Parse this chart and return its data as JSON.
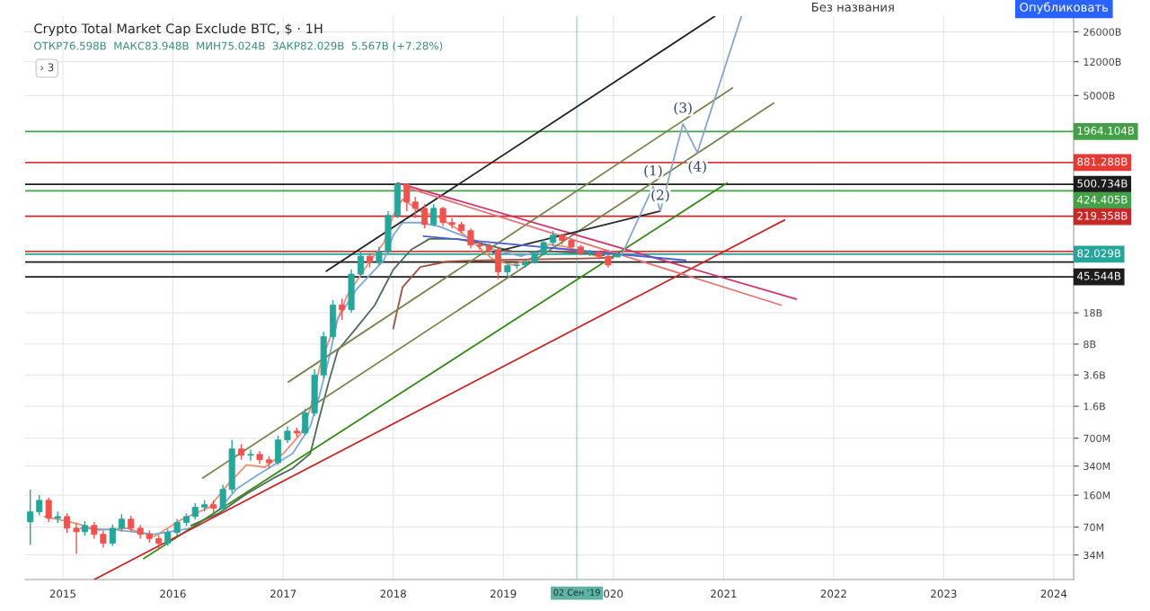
{
  "chart_data": {
    "type": "candlestick",
    "title": "Crypto Total Market Cap Exclude BTC, $ · 1H",
    "subtitle": "ОТКР76.598B  МАКС83.948B  МИН75.024B  ЗАКР82.029B  5.567B (+7.28%)",
    "x": [
      "2014-09-15",
      "2014-10-15",
      "2014-11-15",
      "2014-12-15",
      "2015-01-15",
      "2015-02-15",
      "2015-03-15",
      "2015-04-15",
      "2015-05-15",
      "2015-06-15",
      "2015-07-15",
      "2015-08-15",
      "2015-09-15",
      "2015-10-15",
      "2015-11-15",
      "2015-12-15",
      "2016-01-15",
      "2016-02-15",
      "2016-03-15",
      "2016-04-15",
      "2016-05-15",
      "2016-06-15",
      "2016-07-15",
      "2016-08-15",
      "2016-09-15",
      "2016-10-15",
      "2016-11-15",
      "2016-12-15",
      "2017-01-15",
      "2017-02-15",
      "2017-03-15",
      "2017-04-15",
      "2017-05-15",
      "2017-06-15",
      "2017-07-15",
      "2017-08-15",
      "2017-09-15",
      "2017-10-15",
      "2017-11-15",
      "2017-12-15",
      "2018-01-15",
      "2018-02-15",
      "2018-03-15",
      "2018-04-15",
      "2018-05-15",
      "2018-06-15",
      "2018-07-15",
      "2018-08-15",
      "2018-09-15",
      "2018-10-15",
      "2018-11-15",
      "2018-12-15",
      "2019-01-15",
      "2019-02-15",
      "2019-03-15",
      "2019-04-15",
      "2019-05-15",
      "2019-06-15",
      "2019-07-15",
      "2019-08-15",
      "2019-09-15",
      "2019-10-15",
      "2019-11-15",
      "2019-12-15",
      "2020-01-15"
    ],
    "ohlc": [
      [
        80000000.0,
        186000000.0,
        44000000.0,
        104000000.0
      ],
      [
        104000000.0,
        160000000.0,
        95000000.0,
        140000000.0
      ],
      [
        140000000.0,
        150000000.0,
        80000000.0,
        88000000.0
      ],
      [
        88000000.0,
        105000000.0,
        78000000.0,
        92000000.0
      ],
      [
        92000000.0,
        100000000.0,
        60000000.0,
        68000000.0
      ],
      [
        68000000.0,
        78000000.0,
        35000000.0,
        62000000.0
      ],
      [
        62000000.0,
        82000000.0,
        56000000.0,
        73000000.0
      ],
      [
        73000000.0,
        80000000.0,
        52000000.0,
        58000000.0
      ],
      [
        58000000.0,
        64000000.0,
        41000000.0,
        46000000.0
      ],
      [
        46000000.0,
        75000000.0,
        43000000.0,
        68000000.0
      ],
      [
        68000000.0,
        98000000.0,
        62000000.0,
        86000000.0
      ],
      [
        86000000.0,
        94000000.0,
        62000000.0,
        68000000.0
      ],
      [
        68000000.0,
        74000000.0,
        52000000.0,
        58000000.0
      ],
      [
        58000000.0,
        64000000.0,
        47000000.0,
        52000000.0
      ],
      [
        52000000.0,
        57000000.0,
        40000000.0,
        46000000.0
      ],
      [
        46000000.0,
        66000000.0,
        43000000.0,
        61000000.0
      ],
      [
        61000000.0,
        86000000.0,
        56000000.0,
        79000000.0
      ],
      [
        79000000.0,
        100000000.0,
        72000000.0,
        92000000.0
      ],
      [
        92000000.0,
        130000000.0,
        85000000.0,
        117000000.0
      ],
      [
        117000000.0,
        140000000.0,
        105000000.0,
        125000000.0
      ],
      [
        125000000.0,
        140000000.0,
        100000000.0,
        114000000.0
      ],
      [
        114000000.0,
        210000000.0,
        105000000.0,
        186000000.0
      ],
      [
        186000000.0,
        670000000.0,
        170000000.0,
        530000000.0
      ],
      [
        530000000.0,
        600000000.0,
        400000000.0,
        450000000.0
      ],
      [
        450000000.0,
        520000000.0,
        390000000.0,
        460000000.0
      ],
      [
        460000000.0,
        500000000.0,
        360000000.0,
        400000000.0
      ],
      [
        400000000.0,
        440000000.0,
        320000000.0,
        370000000.0
      ],
      [
        370000000.0,
        750000000.0,
        350000000.0,
        670000000.0
      ],
      [
        670000000.0,
        950000000.0,
        620000000.0,
        840000000.0
      ],
      [
        840000000.0,
        920000000.0,
        720000000.0,
        800000000.0
      ],
      [
        800000000.0,
        1500000000.0,
        760000000.0,
        1340000000.0
      ],
      [
        1340000000.0,
        4200000000.0,
        1250000000.0,
        3600000000.0
      ],
      [
        3600000000.0,
        11000000000.0,
        3300000000.0,
        9700000000.0
      ],
      [
        9700000000.0,
        25000000000.0,
        9000000000.0,
        22000000000.0
      ],
      [
        22000000000.0,
        26000000000.0,
        15000000000.0,
        19500000000.0
      ],
      [
        19500000000.0,
        55000000000.0,
        18000000000.0,
        49000000000.0
      ],
      [
        49000000000.0,
        90000000000.0,
        45000000000.0,
        78000000000.0
      ],
      [
        78000000000.0,
        85000000000.0,
        58000000000.0,
        67000000000.0
      ],
      [
        67000000000.0,
        100000000000.0,
        62000000000.0,
        88000000000.0
      ],
      [
        88000000000.0,
        250000000000.0,
        82000000000.0,
        224000000000.0
      ],
      [
        224000000000.0,
        520000000000.0,
        210000000000.0,
        505000000000.0
      ],
      [
        505000000000.0,
        515000000000.0,
        250000000000.0,
        317000000000.0
      ],
      [
        317000000000.0,
        360000000000.0,
        210000000000.0,
        269000000000.0
      ],
      [
        269000000000.0,
        300000000000.0,
        160000000000.0,
        177000000000.0
      ],
      [
        177000000000.0,
        300000000000.0,
        170000000000.0,
        269000000000.0
      ],
      [
        269000000000.0,
        280000000000.0,
        170000000000.0,
        186000000000.0
      ],
      [
        186000000000.0,
        210000000000.0,
        160000000000.0,
        177000000000.0
      ],
      [
        177000000000.0,
        190000000000.0,
        140000000000.0,
        151000000000.0
      ],
      [
        151000000000.0,
        160000000000.0,
        95000000000.0,
        104000000000.0
      ],
      [
        104000000000.0,
        115000000000.0,
        92000000000.0,
        101000000000.0
      ],
      [
        101000000000.0,
        108000000000.0,
        85000000000.0,
        92000000000.0
      ],
      [
        92000000000.0,
        96000000000.0,
        43000000000.0,
        52000000000.0
      ],
      [
        52000000000.0,
        65000000000.0,
        46000000000.0,
        61000000000.0
      ],
      [
        61000000000.0,
        66000000000.0,
        56000000000.0,
        62000000000.0
      ],
      [
        62000000000.0,
        70000000000.0,
        58000000000.0,
        67000000000.0
      ],
      [
        67000000000.0,
        90000000000.0,
        64000000000.0,
        84000000000.0
      ],
      [
        84000000000.0,
        120000000000.0,
        80000000000.0,
        111000000000.0
      ],
      [
        111000000000.0,
        150000000000.0,
        100000000000.0,
        134000000000.0
      ],
      [
        134000000000.0,
        140000000000.0,
        105000000000.0,
        117000000000.0
      ],
      [
        117000000000.0,
        122000000000.0,
        92000000000.0,
        99000000000.0
      ],
      [
        99000000000.0,
        104000000000.0,
        80000000000.0,
        84000000000.0
      ],
      [
        84000000000.0,
        92000000000.0,
        78000000000.0,
        86000000000.0
      ],
      [
        86000000000.0,
        90000000000.0,
        72000000000.0,
        78000000000.0
      ],
      [
        78000000000.0,
        82000000000.0,
        58000000000.0,
        62000000000.0
      ],
      [
        76598000000.0,
        83948000000.0,
        75024000000.0,
        82029000000.0
      ]
    ],
    "colors": [
      "#26a69a",
      "#26a69a",
      "#ef5350",
      "#26a69a",
      "#ef5350",
      "#ef5350",
      "#26a69a",
      "#ef5350",
      "#ef5350",
      "#26a69a",
      "#26a69a",
      "#ef5350",
      "#ef5350",
      "#ef5350",
      "#ef5350",
      "#26a69a",
      "#26a69a",
      "#26a69a",
      "#26a69a",
      "#26a69a",
      "#ef5350",
      "#26a69a",
      "#26a69a",
      "#ef5350",
      "#26a69a",
      "#ef5350",
      "#ef5350",
      "#26a69a",
      "#26a69a",
      "#ef5350",
      "#26a69a",
      "#26a69a",
      "#26a69a",
      "#26a69a",
      "#ef5350",
      "#26a69a",
      "#26a69a",
      "#ef5350",
      "#26a69a",
      "#26a69a",
      "#26a69a",
      "#ef5350",
      "#ef5350",
      "#ef5350",
      "#26a69a",
      "#ef5350",
      "#ef5350",
      "#ef5350",
      "#ef5350",
      "#ef5350",
      "#ef5350",
      "#ef5350",
      "#26a69a",
      "#26a69a",
      "#26a69a",
      "#26a69a",
      "#26a69a",
      "#26a69a",
      "#ef5350",
      "#ef5350",
      "#ef5350",
      "#26a69a",
      "#ef5350",
      "#ef5350",
      "#26a69a"
    ],
    "series": [
      {
        "type": "line",
        "color": "#ef8f74",
        "x": [
          "2014-11",
          "2015-02",
          "2015-05",
          "2015-08",
          "2015-11",
          "2016-02",
          "2016-05",
          "2016-07",
          "2016-09",
          "2016-11",
          "2017-01",
          "2017-03",
          "2017-04",
          "2017-05",
          "2017-06",
          "2017-08",
          "2017-10",
          "2017-12",
          "2018-01",
          "2018-02",
          "2018-04",
          "2018-06",
          "2018-08",
          "2018-10",
          "2018-12",
          "2019-02",
          "2019-04",
          "2019-06",
          "2019-08",
          "2019-10",
          "2019-12"
        ],
        "values": [
          92000000.0,
          79000000.0,
          65000000.0,
          68000000.0,
          55000000.0,
          86000000.0,
          117000000.0,
          210000000.0,
          350000000.0,
          330000000.0,
          470000000.0,
          790000000.0,
          1500000000.0,
          4300000000.0,
          8600000000.0,
          28000000000.0,
          58000000000.0,
          111000000000.0,
          224000000000.0,
          340000000000.0,
          251000000000.0,
          214000000000.0,
          158000000000.0,
          106000000000.0,
          70000000000.0,
          62000000000.0,
          73000000000.0,
          106000000000.0,
          99000000000.0,
          84000000000.0,
          75000000000.0
        ]
      },
      {
        "type": "line",
        "color": "#7fa6d6",
        "x": [
          "2015-03",
          "2015-07",
          "2015-11",
          "2016-03",
          "2016-06",
          "2016-08",
          "2016-10",
          "2016-12",
          "2017-02",
          "2017-04",
          "2017-05",
          "2017-06",
          "2017-07",
          "2017-09",
          "2017-11",
          "2017-12",
          "2018-01",
          "2018-02",
          "2018-04",
          "2018-06",
          "2018-08",
          "2018-10",
          "2018-12",
          "2019-03",
          "2019-06",
          "2019-09",
          "2019-12"
        ],
        "values": [
          68000000.0,
          65000000.0,
          58000000.0,
          68000000.0,
          110000000.0,
          190000000.0,
          260000000.0,
          350000000.0,
          470000000.0,
          950000000.0,
          2100000000.0,
          5400000000.0,
          15400000000.0,
          33000000000.0,
          55000000000.0,
          70000000000.0,
          134000000000.0,
          186000000000.0,
          186000000000.0,
          169000000000.0,
          140000000000.0,
          117000000000.0,
          92000000000.0,
          78000000000.0,
          97000000000.0,
          92000000000.0,
          80000000000.0
        ]
      },
      {
        "type": "line",
        "color": "#4e6b58",
        "x": [
          "2016-03",
          "2016-06",
          "2016-09",
          "2016-12",
          "2017-02",
          "2017-04",
          "2017-05",
          "2017-06",
          "2017-07",
          "2017-09",
          "2017-11",
          "2018-01",
          "2018-03",
          "2018-05",
          "2018-08",
          "2018-11",
          "2019-02",
          "2019-06",
          "2019-10",
          "2019-12"
        ],
        "values": [
          73000000.0,
          100000000.0,
          165000000.0,
          250000000.0,
          320000000.0,
          470000000.0,
          1200000000.0,
          3000000000.0,
          6800000000.0,
          12200000000.0,
          22000000000.0,
          55000000000.0,
          92000000000.0,
          122000000000.0,
          122000000000.0,
          106000000000.0,
          88000000000.0,
          88000000000.0,
          84000000000.0,
          80000000000.0
        ]
      },
      {
        "type": "line",
        "color": "#a0523f",
        "x": [
          "2018-01",
          "2018-02",
          "2018-04",
          "2018-07",
          "2018-11",
          "2019-04",
          "2019-09",
          "2020-01"
        ],
        "values": [
          12000000000.0,
          35000000000.0,
          59000000000.0,
          68000000000.0,
          70000000000.0,
          72000000000.0,
          73000000000.0,
          75000000000.0
        ]
      },
      {
        "type": "line",
        "color": "#222222",
        "x": [
          "2017-05-24",
          "2020-12-03"
        ],
        "values": [
          53000000000.0,
          39000000000000.0
        ]
      },
      {
        "type": "line",
        "color": "#7a8450",
        "x": [
          "2016-04-09",
          "2021-06-16"
        ],
        "values": [
          250000000.0,
          4100000000000.0
        ]
      },
      {
        "type": "line",
        "color": "#7a8450",
        "x": [
          "2017-01-18",
          "2021-01-30"
        ],
        "values": [
          3000000000.0,
          6080000000000.0
        ]
      },
      {
        "type": "line",
        "color": "#3a8a1c",
        "x": [
          "2015-09-26",
          "2021-01-12"
        ],
        "values": [
          31000000.0,
          517000000000.0
        ]
      },
      {
        "type": "line",
        "color": "#c62828",
        "x": [
          "2015-04-15",
          "2021-07-22"
        ],
        "values": [
          18000000.0,
          199000000000.0
        ]
      },
      {
        "type": "line",
        "color": "#d0346a",
        "x": [
          "2018-01-15",
          "2021-08-30"
        ],
        "values": [
          520000000000.0,
          25700000000.0
        ]
      },
      {
        "type": "line",
        "color": "#e57373",
        "x": [
          "2018-02-06",
          "2021-07-10"
        ],
        "values": [
          471000000000.0,
          22000000000.0
        ]
      },
      {
        "type": "line",
        "color": "#2b2b2b",
        "x": [
          "2018-11-28",
          "2020-06-05"
        ],
        "values": [
          86000000000.0,
          251000000000.0
        ]
      },
      {
        "type": "line",
        "color": "#4a5fd0",
        "x": [
          "2018-04-11",
          "2020-08-28"
        ],
        "values": [
          131000000000.0,
          70000000000.0
        ]
      },
      {
        "type": "line",
        "color": "#8aa4c8",
        "x": [
          "2020-01-30",
          "2020-05-12",
          "2020-06-05",
          "2020-08-19",
          "2020-10-06",
          "2021-03-01"
        ],
        "values": [
          82000000000.0,
          471000000000.0,
          251000000000.0,
          2400000000000.0,
          1140000000000.0,
          39000000000000.0
        ]
      }
    ],
    "xlim": [
      "2014-08-29",
      "2024-03-07"
    ],
    "xticks": [
      "2015",
      "2016",
      "2017",
      "2018",
      "2019",
      {
        "value": "2020",
        "label": "020"
      },
      "2021",
      "2022",
      "2023",
      "2024"
    ],
    "ylim": [
      18000000.0,
      39000000000000.0
    ],
    "yticks": [
      {
        "value": 26000000000000.0,
        "label": "26000B"
      },
      {
        "value": 12000000000000.0,
        "label": "12000B"
      },
      {
        "value": 5000000000000.0,
        "label": "5000B"
      },
      {
        "value": 18000000000.0,
        "label": "18B"
      },
      {
        "value": 8000000000.0,
        "label": "8B"
      },
      {
        "value": 3600000000.0,
        "label": "3.6B"
      },
      {
        "value": 1600000000.0,
        "label": "1.6B"
      },
      {
        "value": 700000000.0,
        "label": "700M"
      },
      {
        "value": 340000000.0,
        "label": "340M"
      },
      {
        "value": 160000000.0,
        "label": "160M"
      },
      {
        "value": 70000000.0,
        "label": "70M"
      },
      {
        "value": 34000000.0,
        "label": "34M"
      }
    ],
    "log": "y",
    "grid": true,
    "ref_lines": [
      {
        "axis": "y",
        "value": 1964104000000.0,
        "label": "1964.104B",
        "color": "#43a047"
      },
      {
        "axis": "y",
        "value": 881288000000.0,
        "label": "881.288B",
        "color": "#e53935"
      },
      {
        "axis": "y",
        "value": 500734000000.0,
        "label": "500.734B",
        "color": "#1c1c1c"
      },
      {
        "axis": "y",
        "value": 424405000000.0,
        "label": "424.405B",
        "color": "#43a047"
      },
      {
        "axis": "y",
        "value": 219358000000.0,
        "label": "219.358B",
        "color": "#c62828"
      },
      {
        "axis": "y",
        "value": 88000000000.0,
        "color": "#e53935"
      },
      {
        "axis": "y",
        "value": 82029000000.0,
        "label": "82.029B",
        "color": "#26a69a"
      },
      {
        "axis": "y",
        "value": 67000000000.0,
        "color": "#1c1c1c"
      },
      {
        "axis": "y",
        "value": 45544000000.0,
        "label": "45.544B",
        "color": "#1c1c1c"
      },
      {
        "axis": "x",
        "value": "2019-09-02",
        "label": "02 Сен '19",
        "color": "#5fb3a6"
      }
    ],
    "annotations": [
      "› 3",
      "Без названия",
      "Опубликовать",
      {
        "text": "(1)",
        "x": "2020-05-12",
        "y": 471000000000.0
      },
      {
        "text": "(2)",
        "x": "2020-06-05",
        "y": 251000000000.0
      },
      {
        "text": "(3)",
        "x": "2020-08-19",
        "y": 2400000000000.0
      },
      {
        "text": "(4)",
        "x": "2020-10-06",
        "y": 1140000000000.0
      }
    ]
  }
}
